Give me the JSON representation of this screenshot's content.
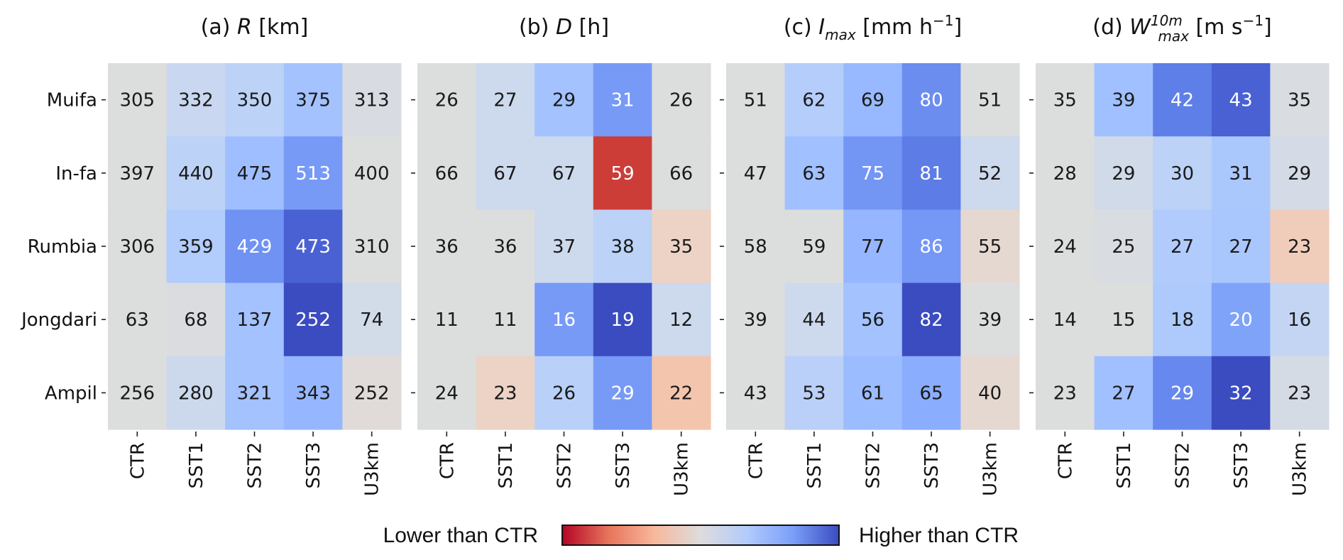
{
  "chart_data": {
    "type": "heatmap",
    "rows": [
      "Muifa",
      "In-fa",
      "Rumbia",
      "Jongdari",
      "Ampil"
    ],
    "columns": [
      "CTR",
      "SST1",
      "SST2",
      "SST3",
      "U3km"
    ],
    "panels": [
      {
        "id": "a",
        "title_prefix": "(a) ",
        "title_var": "R",
        "title_sub": "",
        "title_sup": "",
        "title_unit": " [km]",
        "title_unit_sup": "",
        "title_unit_tail": "",
        "values": [
          [
            305,
            332,
            350,
            375,
            313
          ],
          [
            397,
            440,
            475,
            513,
            400
          ],
          [
            306,
            359,
            429,
            473,
            310
          ],
          [
            63,
            68,
            137,
            252,
            74
          ],
          [
            256,
            280,
            321,
            343,
            252
          ]
        ],
        "colors": [
          [
            "#dcdddd",
            "#c9d7f0",
            "#bcd2f7",
            "#a3c2fe",
            "#d8dce2"
          ],
          [
            "#dcdddd",
            "#bcd2f7",
            "#9ebeff",
            "#779af7",
            "#dcdddd"
          ],
          [
            "#dcdddd",
            "#b2ccfb",
            "#6f92f3",
            "#4961d2",
            "#dcdddd"
          ],
          [
            "#dcdddd",
            "#dadce0",
            "#a3c2fe",
            "#3b4cc0",
            "#d2dbe8"
          ],
          [
            "#dcdddd",
            "#ccd9ed",
            "#a3c2fe",
            "#96b7ff",
            "#e0dbd8"
          ]
        ]
      },
      {
        "id": "b",
        "title_prefix": "(b) ",
        "title_var": "D",
        "title_sub": "",
        "title_sup": "",
        "title_unit": " [h]",
        "title_unit_sup": "",
        "title_unit_tail": "",
        "values": [
          [
            26,
            27,
            29,
            31,
            26
          ],
          [
            66,
            67,
            67,
            59,
            66
          ],
          [
            36,
            36,
            37,
            38,
            35
          ],
          [
            11,
            11,
            16,
            19,
            12
          ],
          [
            24,
            23,
            26,
            29,
            22
          ]
        ],
        "colors": [
          [
            "#dcdddd",
            "#cdd9ec",
            "#a3c2fe",
            "#779af7",
            "#dcdddd"
          ],
          [
            "#dcdddd",
            "#cdd9ec",
            "#cdd9ec",
            "#cc3d37",
            "#dcdddd"
          ],
          [
            "#dcdddd",
            "#dcdddd",
            "#cdd9ec",
            "#bcd2f7",
            "#ecd3c5"
          ],
          [
            "#dcdddd",
            "#dcdddd",
            "#779af7",
            "#3b4cc0",
            "#cdd9ec"
          ],
          [
            "#dcdddd",
            "#ecd3c5",
            "#b9d0f9",
            "#779af7",
            "#f4c5ad"
          ]
        ]
      },
      {
        "id": "c",
        "title_prefix": "(c) ",
        "title_var": "I",
        "title_sub": "max",
        "title_sup": "",
        "title_unit": " [mm h",
        "title_unit_sup": "−1",
        "title_unit_tail": "]",
        "values": [
          [
            51,
            62,
            69,
            80,
            51
          ],
          [
            47,
            63,
            75,
            81,
            52
          ],
          [
            58,
            59,
            77,
            86,
            55
          ],
          [
            39,
            44,
            56,
            82,
            39
          ],
          [
            43,
            53,
            61,
            65,
            40
          ]
        ],
        "colors": [
          [
            "#dcdddd",
            "#b5cdfa",
            "#98b9ff",
            "#6b8df0",
            "#dcdddd"
          ],
          [
            "#dcdddd",
            "#a1c0ff",
            "#7396f5",
            "#5d7ce6",
            "#cdd9ec"
          ],
          [
            "#dcdddd",
            "#dcdddd",
            "#96b7ff",
            "#7597f6",
            "#e5d8d1"
          ],
          [
            "#dcdddd",
            "#cdd9ec",
            "#a3c2fe",
            "#3b4cc0",
            "#dcdddd"
          ],
          [
            "#dcdddd",
            "#bad0f8",
            "#9bbcff",
            "#8badfd",
            "#e5d8d1"
          ]
        ]
      },
      {
        "id": "d",
        "title_prefix": "(d) ",
        "title_var": "W",
        "title_sub": "max",
        "title_sup": "10m",
        "title_unit": " [m s",
        "title_unit_sup": "−1",
        "title_unit_tail": "]",
        "values": [
          [
            35,
            39,
            42,
            43,
            35
          ],
          [
            28,
            29,
            30,
            31,
            29
          ],
          [
            24,
            25,
            27,
            27,
            23
          ],
          [
            14,
            15,
            18,
            20,
            16
          ],
          [
            23,
            27,
            29,
            32,
            23
          ]
        ],
        "colors": [
          [
            "#dcdddd",
            "#a1c0ff",
            "#5f7fe8",
            "#4961d2",
            "#d9dce1"
          ],
          [
            "#dcdddd",
            "#d1dae9",
            "#bcd2f7",
            "#abc8fd",
            "#d4dbe6"
          ],
          [
            "#dcdddd",
            "#d9dce1",
            "#b1cbfc",
            "#aac7fd",
            "#f0cdbb"
          ],
          [
            "#dcdddd",
            "#dcdddd",
            "#aec9fc",
            "#80a3fa",
            "#c4d5f3"
          ],
          [
            "#dcdddd",
            "#a1c0ff",
            "#6788ee",
            "#3b4cc0",
            "#d5dbe5"
          ]
        ]
      }
    ],
    "colorbar": {
      "colormap": "coolwarm (reversed)",
      "left_label": "Lower than CTR",
      "right_label": "Higher than CTR",
      "stops": [
        "#b40426",
        "#e7745b",
        "#f7b89c",
        "#dddcdc",
        "#b2ccfb",
        "#7b9ff9",
        "#3b4cc0"
      ]
    },
    "light_text_color": "#ffffff",
    "dark_text_color": "#1a1a1a",
    "light_text_cells": {
      "a": [
        [
          1,
          3
        ],
        [
          2,
          2
        ],
        [
          2,
          3
        ],
        [
          3,
          3
        ]
      ],
      "b": [
        [
          0,
          3
        ],
        [
          1,
          3
        ],
        [
          3,
          2
        ],
        [
          3,
          3
        ],
        [
          4,
          3
        ]
      ],
      "c": [
        [
          0,
          3
        ],
        [
          1,
          2
        ],
        [
          1,
          3
        ],
        [
          2,
          3
        ],
        [
          3,
          3
        ]
      ],
      "d": [
        [
          0,
          2
        ],
        [
          0,
          3
        ],
        [
          3,
          3
        ],
        [
          4,
          2
        ],
        [
          4,
          3
        ]
      ]
    }
  }
}
